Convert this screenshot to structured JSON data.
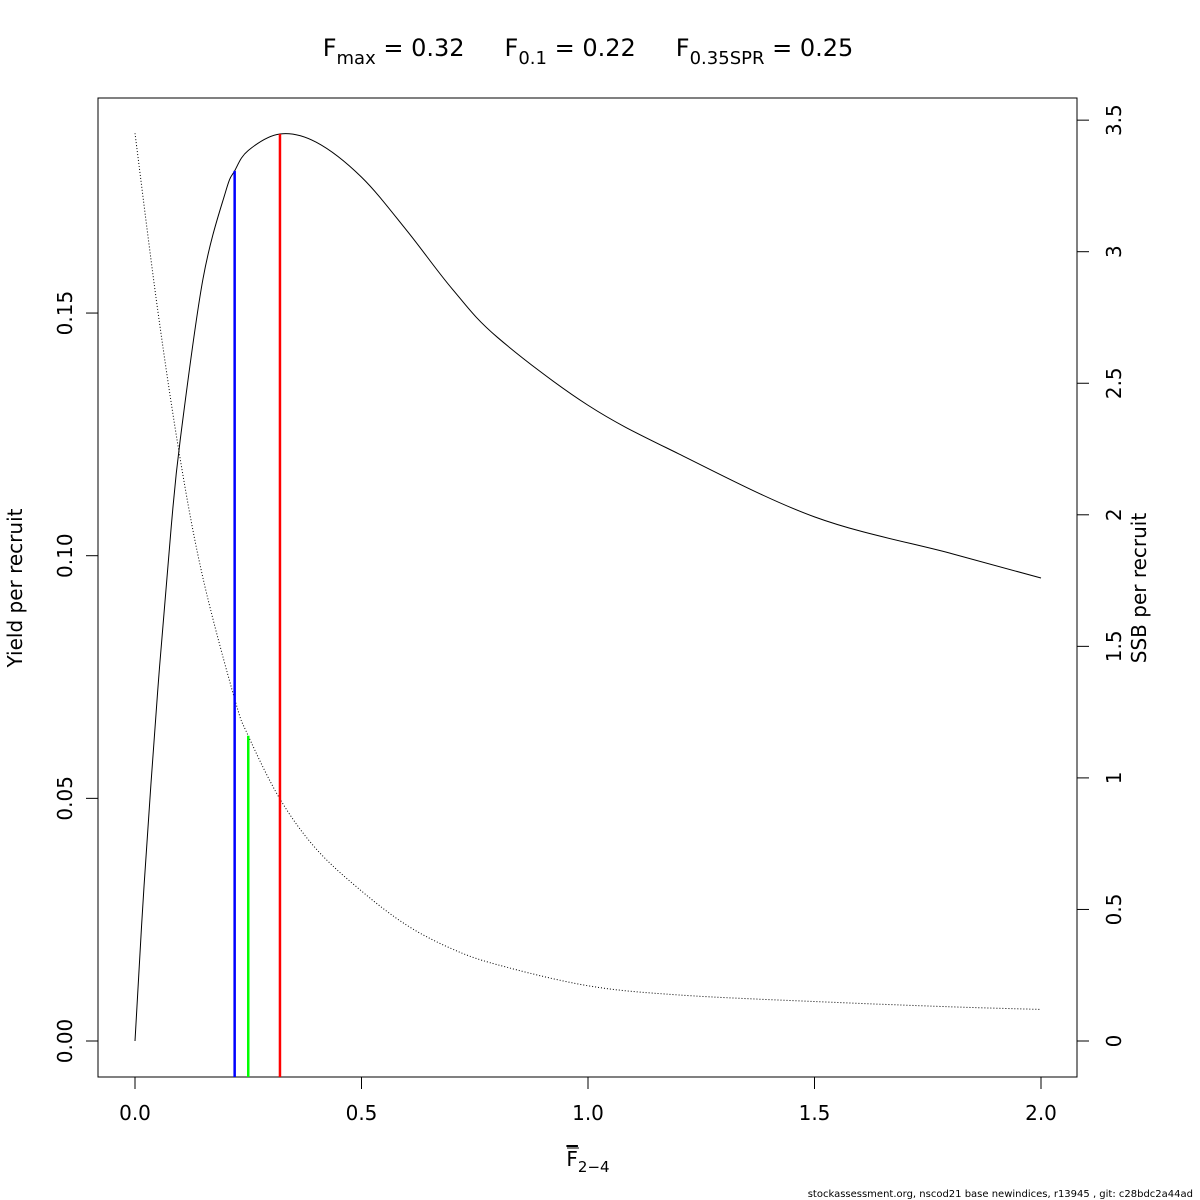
{
  "chart_data": {
    "type": "line",
    "title_parts": [
      {
        "main": "F",
        "sub": "max",
        "rest": " = 0.32"
      },
      {
        "main": "F",
        "sub": "0.1",
        "rest": " = 0.22"
      },
      {
        "main": "F",
        "sub": "0.35SPR",
        "rest": " = 0.25"
      }
    ],
    "xlabel": {
      "main": "F",
      "sub": "2−4"
    },
    "ylabel": "Yield per recruit",
    "y2label": "SSB per recruit",
    "xlim": [
      0,
      2.0
    ],
    "ylim": [
      0,
      0.19
    ],
    "y2lim": [
      0,
      3.5
    ],
    "xticks": [
      "0.0",
      "0.5",
      "1.0",
      "1.5",
      "2.0"
    ],
    "yticks": [
      "0.00",
      "0.05",
      "0.10",
      "0.15"
    ],
    "y2ticks": [
      "0",
      "0.5",
      "1",
      "1.5",
      "2",
      "2.5",
      "3",
      "3.5"
    ],
    "grid": false,
    "series": [
      {
        "axis": "left",
        "style": "solid",
        "color": "#000000",
        "x": [
          0,
          0.02,
          0.05,
          0.08,
          0.1,
          0.15,
          0.2,
          0.22,
          0.25,
          0.32,
          0.4,
          0.5,
          0.6,
          0.7,
          0.8,
          1.0,
          1.2,
          1.5,
          1.8,
          2.0
        ],
        "y": [
          0,
          0.032,
          0.072,
          0.106,
          0.124,
          0.157,
          0.175,
          0.1793,
          0.1835,
          0.1869,
          0.1852,
          0.178,
          0.167,
          0.155,
          0.145,
          0.131,
          0.121,
          0.108,
          0.1005,
          0.0954
        ]
      },
      {
        "axis": "right",
        "style": "dotted",
        "color": "#000000",
        "x": [
          0,
          0.05,
          0.1,
          0.15,
          0.22,
          0.25,
          0.32,
          0.4,
          0.5,
          0.6,
          0.7,
          0.8,
          1.0,
          1.2,
          1.5,
          1.8,
          2.0
        ],
        "y": [
          3.45,
          2.78,
          2.21,
          1.76,
          1.3,
          1.16,
          0.92,
          0.73,
          0.57,
          0.44,
          0.35,
          0.29,
          0.21,
          0.175,
          0.15,
          0.13,
          0.12
        ]
      }
    ],
    "reference_lines": [
      {
        "label": "F0.1",
        "x": 0.22,
        "top": 0.1793,
        "axis": "left",
        "color": "#0000ff"
      },
      {
        "label": "F0.35SPR",
        "x": 0.25,
        "top": 1.16,
        "axis": "right",
        "color": "#00ff00"
      },
      {
        "label": "Fmax",
        "x": 0.32,
        "top": 0.1869,
        "axis": "left",
        "color": "#ff0000"
      }
    ]
  },
  "footer": "stockassessment.org, nscod21 base newindices, r13945 , git: c28bdc2a44ad"
}
